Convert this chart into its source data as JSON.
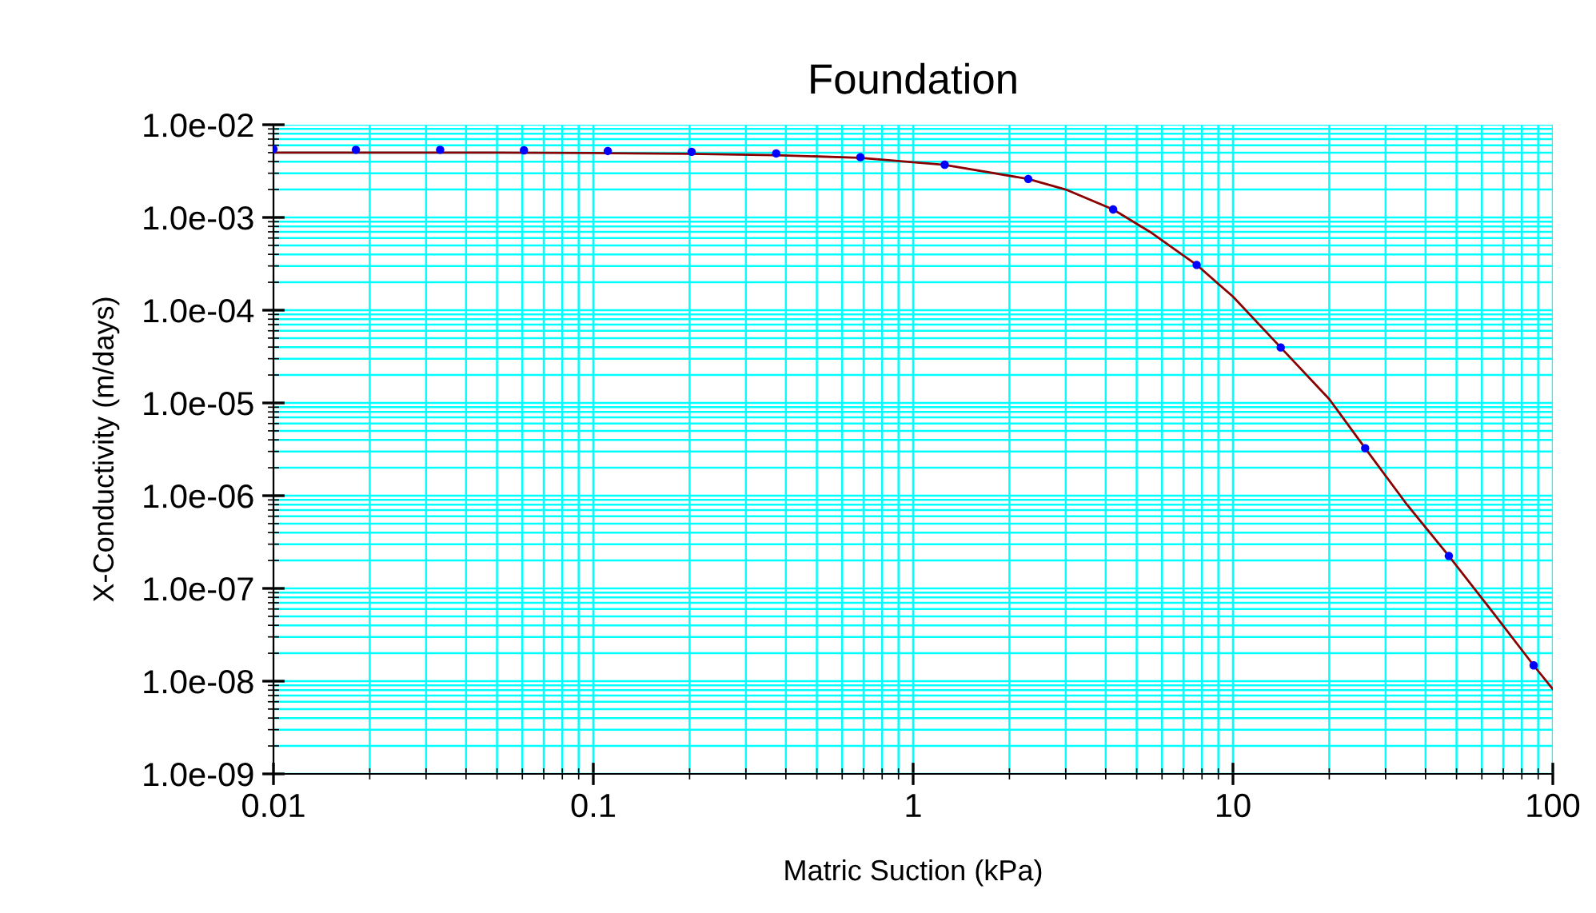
{
  "chart_data": {
    "type": "scatter",
    "title": "Foundation",
    "xlabel": "Matric Suction (kPa)",
    "ylabel": "X-Conductivity (m/days)",
    "log": "xy",
    "grid": true,
    "marker": "circle",
    "xlim": [
      0.01,
      100
    ],
    "xticks": [
      0.01,
      0.1,
      1,
      10,
      100
    ],
    "ylim": [
      1e-09,
      0.01
    ],
    "yticks": [
      {
        "value": 1e-09,
        "label": "1.0e-09"
      },
      {
        "value": 1e-08,
        "label": "1.0e-08"
      },
      {
        "value": 1e-07,
        "label": "1.0e-07"
      },
      {
        "value": 1e-06,
        "label": "1.0e-06"
      },
      {
        "value": 1e-05,
        "label": "1.0e-05"
      },
      {
        "value": 0.0001,
        "label": "1.0e-04"
      },
      {
        "value": 0.001,
        "label": "1.0e-03"
      },
      {
        "value": 0.01,
        "label": "1.0e-02"
      }
    ],
    "series": [
      {
        "type": "line",
        "color": "#8b0000",
        "line_style": "solid",
        "marker": "none",
        "x": [
          0.01,
          0.05,
          0.1,
          0.2,
          0.37,
          0.68,
          1.25,
          2.29,
          3,
          4.22,
          5.5,
          7.7,
          10,
          14.1,
          20,
          25.9,
          35,
          47.3,
          65,
          87.1,
          100
        ],
        "values": [
          0.005,
          0.005,
          0.00495,
          0.00485,
          0.0047,
          0.0044,
          0.0037,
          0.0026,
          0.002,
          0.00122,
          0.0007,
          0.000308,
          0.00014,
          3.96e-05,
          1.1e-05,
          3.25e-06,
          8e-07,
          2.24e-07,
          5.5e-08,
          1.48e-08,
          8.2e-09
        ]
      },
      {
        "color": "#0000ff",
        "x": [
          0.01,
          0.0181,
          0.0332,
          0.0607,
          0.111,
          0.203,
          0.373,
          0.684,
          1.255,
          2.29,
          4.22,
          7.7,
          14.1,
          25.9,
          47.3,
          87.1
        ],
        "values": [
          0.00545,
          0.00537,
          0.00537,
          0.0053,
          0.0052,
          0.0051,
          0.0049,
          0.00446,
          0.00371,
          0.0026,
          0.00122,
          0.000308,
          3.96e-05,
          3.25e-06,
          2.24e-07,
          1.48e-08
        ]
      }
    ]
  }
}
